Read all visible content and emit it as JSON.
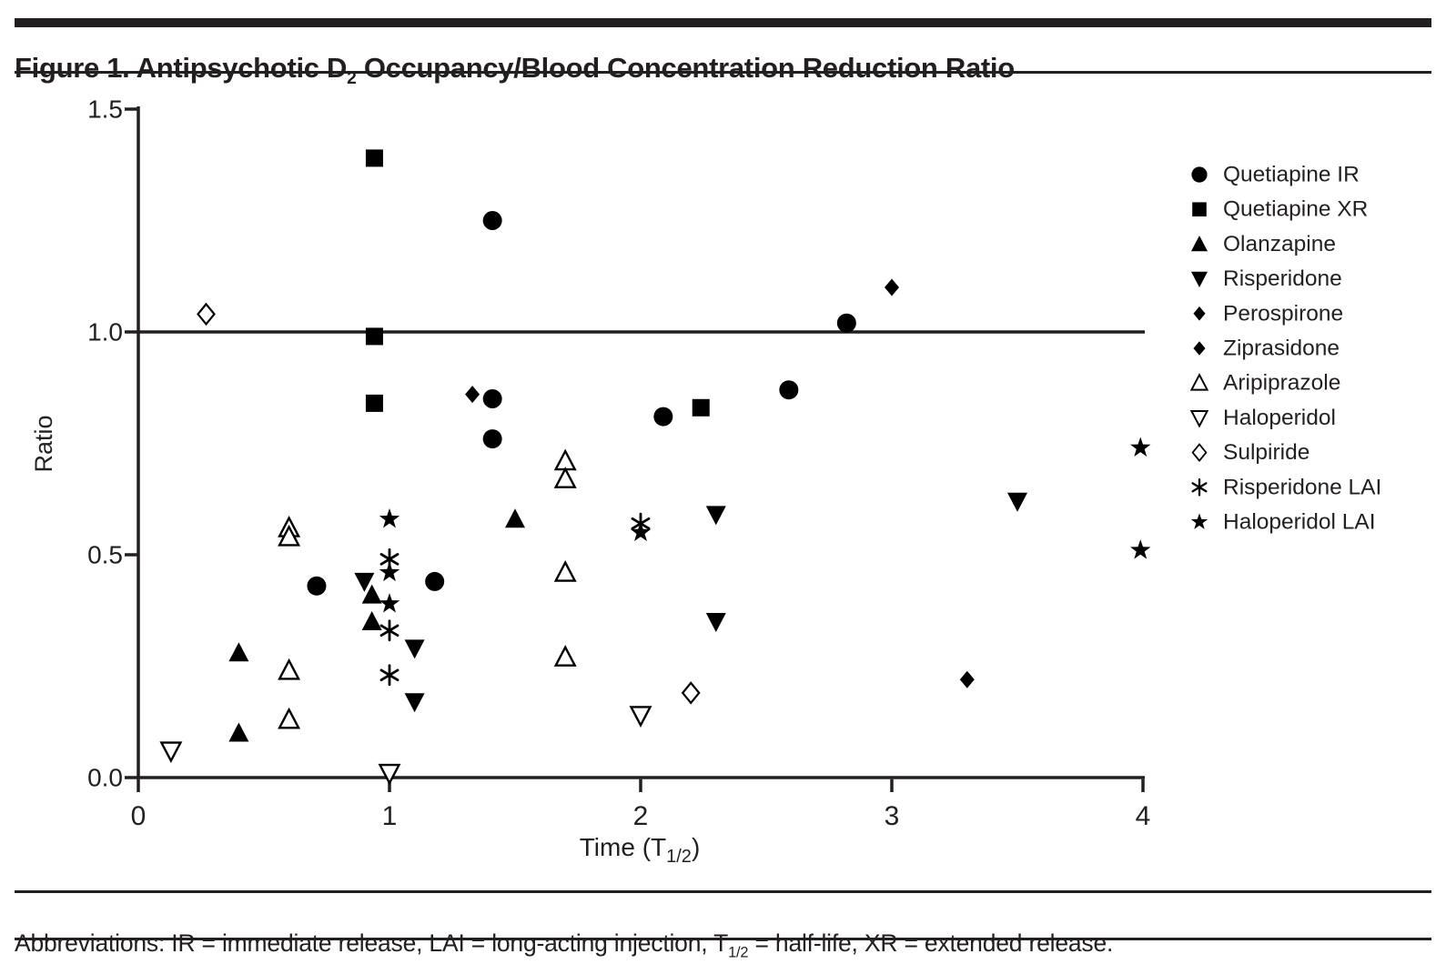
{
  "header": {
    "title_pre": "Figure 1. Antipsychotic D",
    "title_sub": "2",
    "title_post": " Occupancy/Blood Concentration Reduction Ratio"
  },
  "footer": {
    "pre": "Abbreviations: IR = immediate release, LAI = long-acting injection, T",
    "sub": "1/2",
    "post": " = half-life, XR = extended release."
  },
  "chart_data": {
    "type": "scatter",
    "ylabel": "Ratio",
    "xlabel_parts": {
      "pre": "Time (T",
      "sub": "1/2",
      "post": ")"
    },
    "xlim": [
      0,
      4
    ],
    "ylim": [
      0,
      1.5
    ],
    "x_ticks": {
      "values": [
        0,
        1,
        2,
        3,
        4
      ],
      "labels": [
        "0",
        "1",
        "2",
        "3",
        "4"
      ]
    },
    "y_ticks": {
      "values": [
        0,
        0.5,
        1.0,
        1.5
      ],
      "labels": [
        "0.0",
        "0.5",
        "1.0",
        "1.5"
      ]
    },
    "reference_line_y": 1.0,
    "grid": false,
    "legend_position": "right",
    "marker_color": "#000000",
    "axis_color": "#231f20",
    "series": [
      {
        "name": "Quetiapine IR",
        "marker": "circle",
        "points": [
          [
            0.71,
            0.43
          ],
          [
            1.18,
            0.44
          ],
          [
            1.41,
            1.25
          ],
          [
            1.41,
            0.85
          ],
          [
            1.41,
            0.76
          ],
          [
            2.09,
            0.81
          ],
          [
            2.59,
            0.87
          ],
          [
            2.82,
            1.02
          ]
        ]
      },
      {
        "name": "Quetiapine XR",
        "marker": "square",
        "points": [
          [
            0.94,
            1.39
          ],
          [
            0.94,
            0.99
          ],
          [
            0.94,
            0.84
          ],
          [
            2.24,
            0.83
          ]
        ]
      },
      {
        "name": "Olanzapine",
        "marker": "triangle-up",
        "points": [
          [
            0.4,
            0.28
          ],
          [
            0.4,
            0.1
          ],
          [
            0.93,
            0.41
          ],
          [
            0.93,
            0.35
          ],
          [
            1.5,
            0.58
          ]
        ]
      },
      {
        "name": "Risperidone",
        "marker": "triangle-down",
        "points": [
          [
            0.9,
            0.44
          ],
          [
            1.1,
            0.29
          ],
          [
            1.1,
            0.17
          ],
          [
            2.3,
            0.59
          ],
          [
            2.3,
            0.35
          ],
          [
            3.5,
            0.62
          ]
        ]
      },
      {
        "name": "Perospirone",
        "marker": "diamond",
        "points": [
          [
            1.33,
            0.86
          ]
        ]
      },
      {
        "name": "Ziprasidone",
        "marker": "diamond",
        "points": [
          [
            3.0,
            1.1
          ],
          [
            3.3,
            0.22
          ]
        ]
      },
      {
        "name": "Aripiprazole",
        "marker": "triangle-up-open",
        "points": [
          [
            0.6,
            0.56
          ],
          [
            0.6,
            0.54
          ],
          [
            0.6,
            0.24
          ],
          [
            0.6,
            0.13
          ],
          [
            1.7,
            0.71
          ],
          [
            1.7,
            0.67
          ],
          [
            1.7,
            0.46
          ],
          [
            1.7,
            0.27
          ]
        ]
      },
      {
        "name": "Haloperidol",
        "marker": "triangle-down-open",
        "points": [
          [
            0.13,
            0.06
          ],
          [
            1.0,
            0.01
          ],
          [
            2.0,
            0.14
          ]
        ]
      },
      {
        "name": "Sulpiride",
        "marker": "diamond-open",
        "points": [
          [
            0.27,
            1.04
          ],
          [
            2.2,
            0.19
          ]
        ]
      },
      {
        "name": "Risperidone LAI",
        "marker": "asterisk",
        "points": [
          [
            1.0,
            0.49
          ],
          [
            1.0,
            0.33
          ],
          [
            1.0,
            0.23
          ],
          [
            2.0,
            0.57
          ]
        ]
      },
      {
        "name": "Haloperidol LAI",
        "marker": "star",
        "points": [
          [
            1.0,
            0.58
          ],
          [
            1.0,
            0.46
          ],
          [
            1.0,
            0.39
          ],
          [
            2.0,
            0.55
          ],
          [
            3.99,
            0.74
          ],
          [
            3.99,
            0.51
          ]
        ]
      }
    ]
  }
}
